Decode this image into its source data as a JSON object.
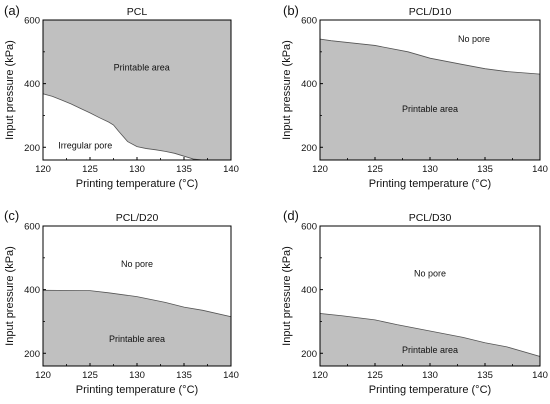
{
  "chart_data": [
    {
      "type": "area",
      "panel_label": "(a)",
      "title": "PCL",
      "xlabel": "Printing temperature (°C)",
      "ylabel": "Input pressure (kPa)",
      "xlim": [
        120,
        140
      ],
      "ylim": [
        160,
        600
      ],
      "xticks": [
        "120",
        "125",
        "130",
        "135",
        "140"
      ],
      "yticks": [
        "200",
        "400",
        "600"
      ],
      "fill": "above",
      "boundary": {
        "x": [
          120,
          121,
          122,
          123,
          124,
          125,
          126,
          127,
          127.5,
          128,
          129,
          130,
          131,
          132,
          133,
          134,
          135,
          136,
          137,
          137.3
        ],
        "y": [
          368,
          360,
          348,
          336,
          322,
          308,
          293,
          279,
          270,
          252,
          218,
          202,
          196,
          192,
          187,
          181,
          172,
          163,
          160,
          160
        ]
      },
      "regions": [
        {
          "text": "Printable area",
          "x": 130.5,
          "y": 450
        },
        {
          "text": "Irregular pore",
          "x": 124.5,
          "y": 205
        }
      ]
    },
    {
      "type": "area",
      "panel_label": "(b)",
      "title": "PCL/D10",
      "xlabel": "Printing temperature (°C)",
      "ylabel": "Input pressure (kPa)",
      "xlim": [
        120,
        140
      ],
      "ylim": [
        160,
        600
      ],
      "xticks": [
        "120",
        "125",
        "130",
        "135",
        "140"
      ],
      "yticks": [
        "200",
        "400",
        "600"
      ],
      "fill": "below",
      "boundary": {
        "x": [
          120,
          121,
          125,
          128,
          130,
          133,
          135,
          137,
          140
        ],
        "y": [
          540,
          535,
          520,
          500,
          480,
          460,
          447,
          438,
          430
        ]
      },
      "regions": [
        {
          "text": "No pore",
          "x": 134,
          "y": 540
        },
        {
          "text": "Printable area",
          "x": 130,
          "y": 320
        }
      ]
    },
    {
      "type": "area",
      "panel_label": "(c)",
      "title": "PCL/D20",
      "xlabel": "Printing temperature (°C)",
      "ylabel": "Input pressure (kPa)",
      "xlim": [
        120,
        140
      ],
      "ylim": [
        160,
        600
      ],
      "xticks": [
        "120",
        "125",
        "130",
        "135",
        "140"
      ],
      "yticks": [
        "200",
        "400",
        "600"
      ],
      "fill": "below",
      "boundary": {
        "x": [
          120,
          125,
          127,
          130,
          133,
          135,
          137,
          140
        ],
        "y": [
          398,
          397,
          390,
          378,
          360,
          345,
          335,
          315
        ]
      },
      "regions": [
        {
          "text": "No pore",
          "x": 130,
          "y": 480
        },
        {
          "text": "Printable area",
          "x": 130,
          "y": 245
        }
      ]
    },
    {
      "type": "area",
      "panel_label": "(d)",
      "title": "PCL/D30",
      "xlabel": "Printing temperature (°C)",
      "ylabel": "Input pressure (kPa)",
      "xlim": [
        120,
        140
      ],
      "ylim": [
        160,
        600
      ],
      "xticks": [
        "120",
        "125",
        "130",
        "135",
        "140"
      ],
      "yticks": [
        "200",
        "400",
        "600"
      ],
      "fill": "below",
      "boundary": {
        "x": [
          120,
          122,
          125,
          127,
          130,
          133,
          135,
          137,
          140
        ],
        "y": [
          325,
          318,
          305,
          290,
          270,
          250,
          233,
          220,
          190
        ]
      },
      "regions": [
        {
          "text": "No pore",
          "x": 130,
          "y": 450
        },
        {
          "text": "Printable area",
          "x": 130,
          "y": 210
        }
      ]
    }
  ]
}
